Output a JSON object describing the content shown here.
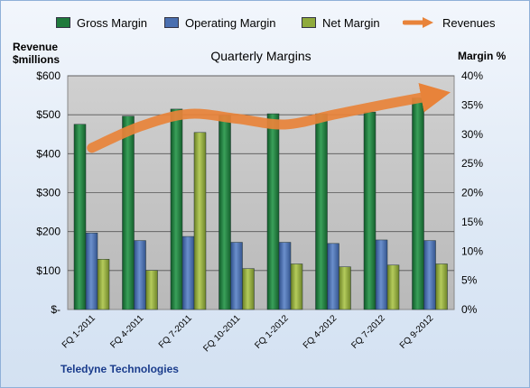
{
  "chart_data": {
    "type": "bar",
    "title": "Quarterly Margins",
    "footer": "Teledyne Technologies",
    "categories": [
      "FQ 1-2011",
      "FQ 4-2011",
      "FQ 7-2011",
      "FQ 10-2011",
      "FQ 1-2012",
      "FQ 4-2012",
      "FQ 7-2012",
      "FQ 9-2012"
    ],
    "y_left": {
      "label_line1": "Revenue",
      "label_line2": "$millions",
      "ylim": [
        0,
        600
      ],
      "ticks": [
        0,
        100,
        200,
        300,
        400,
        500,
        600
      ],
      "tick_labels": [
        "$-",
        "$100",
        "$200",
        "$300",
        "$400",
        "$500",
        "$600"
      ]
    },
    "y_right": {
      "label": "Margin %",
      "ylim": [
        0,
        40
      ],
      "ticks": [
        0,
        5,
        10,
        15,
        20,
        25,
        30,
        35,
        40
      ],
      "tick_labels": [
        "0%",
        "5%",
        "10%",
        "15%",
        "20%",
        "25%",
        "30%",
        "35%",
        "40%"
      ]
    },
    "series": [
      {
        "name": "Gross Margin",
        "type": "bar",
        "axis": "right",
        "color": "#1f7a3c",
        "values": [
          31.7,
          33.1,
          34.3,
          33.2,
          33.5,
          33.5,
          33.8,
          36.2
        ]
      },
      {
        "name": "Operating Margin",
        "type": "bar",
        "axis": "right",
        "color": "#4a6fb0",
        "values": [
          13.1,
          11.8,
          12.5,
          11.5,
          11.5,
          11.3,
          11.9,
          11.8
        ]
      },
      {
        "name": "Net Margin",
        "type": "bar",
        "axis": "right",
        "color": "#8faa3c",
        "values": [
          8.6,
          6.7,
          30.3,
          7.0,
          7.8,
          7.3,
          7.6,
          7.8
        ]
      },
      {
        "name": "Revenues",
        "type": "line",
        "axis": "left",
        "color": "#e8833a",
        "values": [
          415,
          470,
          502,
          490,
          475,
          500,
          525,
          548
        ]
      }
    ],
    "grid": true,
    "legend_position": "top"
  }
}
